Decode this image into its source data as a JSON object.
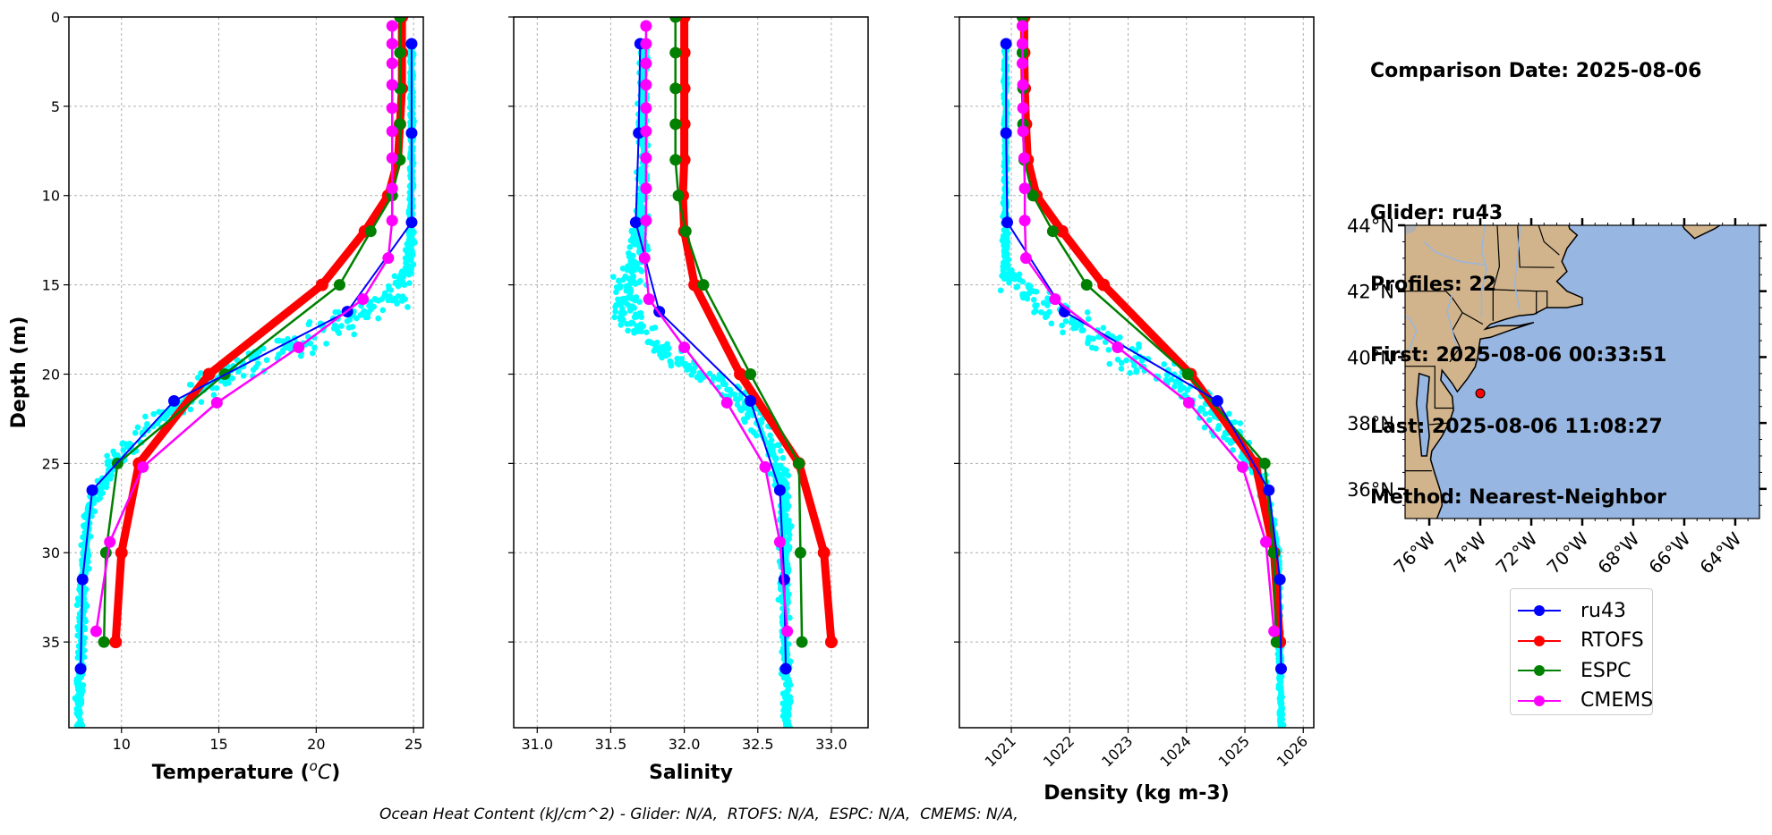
{
  "info": {
    "comparison_date": "Comparison Date: 2025-08-06",
    "glider": "Glider: ru43",
    "profiles": "Profiles: 22",
    "first": "First: 2025-08-06 00:33:51",
    "last": "Last: 2025-08-06 11:08:27",
    "method": "Method: Nearest-Neighbor"
  },
  "footer": {
    "ohc_text": "Ocean Heat Content (kJ/cm^2) - Glider: N/A,  RTOFS: N/A,  ESPC: N/A,  CMEMS: N/A,"
  },
  "legend": [
    {
      "name": "ru43",
      "color": "#0000ff"
    },
    {
      "name": "RTOFS",
      "color": "#ff0000"
    },
    {
      "name": "ESPC",
      "color": "#008000"
    },
    {
      "name": "CMEMS",
      "color": "#ff00ff"
    }
  ],
  "colors": {
    "scatter": "#00ffff",
    "land": "#d2b48c",
    "ocean": "#97b6e1",
    "lakes": "#b0b0b0",
    "rivers": "#97b6e1",
    "grid": "#b0b0b0"
  },
  "chart_data": [
    {
      "type": "line",
      "id": "temperature",
      "xlabel": "Temperature (°C)",
      "ylabel": "Depth (m)",
      "xlim": [
        7.3,
        25.5
      ],
      "ylim": [
        39.8,
        0
      ],
      "xticks": [
        10,
        15,
        20,
        25
      ],
      "yticks": [
        0,
        5,
        10,
        15,
        20,
        25,
        30,
        35
      ],
      "grid": true,
      "scatter": {
        "name": "glider raw profiles",
        "description": "cyan points: surface mixed layer ~24.5-25.2 C to ~18 m; thermocline cloud from ~23 C at 15 m to ~8.5 C at 27 m; bottom ~7.7-8.5 C to 40 m"
      },
      "series": [
        {
          "name": "ru43",
          "depth": [
            1.5,
            6.5,
            11.5,
            16.5,
            21.5,
            26.5,
            31.5,
            36.5
          ],
          "values": [
            24.9,
            24.9,
            24.9,
            21.6,
            12.7,
            8.5,
            8.0,
            7.9
          ]
        },
        {
          "name": "RTOFS",
          "depth": [
            0,
            2,
            4,
            6,
            8,
            10,
            12,
            15,
            20,
            25,
            30,
            35
          ],
          "values": [
            24.4,
            24.4,
            24.4,
            24.3,
            24.2,
            23.7,
            22.5,
            20.3,
            14.5,
            10.9,
            10.0,
            9.7
          ]
        },
        {
          "name": "ESPC",
          "depth": [
            0,
            2,
            4,
            6,
            8,
            10,
            12,
            15,
            20,
            25,
            30,
            35
          ],
          "values": [
            24.3,
            24.3,
            24.3,
            24.3,
            24.3,
            23.9,
            22.8,
            21.2,
            15.3,
            9.8,
            9.2,
            9.1
          ]
        },
        {
          "name": "CMEMS",
          "depth": [
            0.5,
            1.5,
            2.6,
            3.8,
            5.1,
            6.4,
            7.9,
            9.6,
            11.4,
            13.5,
            15.8,
            18.5,
            21.6,
            25.2,
            29.4,
            34.4
          ],
          "values": [
            23.9,
            23.9,
            23.9,
            23.9,
            23.9,
            23.9,
            23.9,
            23.9,
            23.9,
            23.7,
            22.4,
            19.1,
            14.9,
            11.1,
            9.4,
            8.7
          ]
        }
      ]
    },
    {
      "type": "line",
      "id": "salinity",
      "xlabel": "Salinity",
      "ylabel": "",
      "xlim": [
        30.84,
        33.25
      ],
      "ylim": [
        39.8,
        0
      ],
      "xticks": [
        31.0,
        31.5,
        32.0,
        32.5,
        33.0
      ],
      "yticks": [
        0,
        5,
        10,
        15,
        20,
        25,
        30,
        35
      ],
      "grid": true,
      "scatter": {
        "name": "glider raw profiles",
        "description": "cyan points: ~31.6-31.8 near surface to 13 m, spreading 31.2-31.8 at 14-20 m, ~32.3-32.8 below 20 m"
      },
      "series": [
        {
          "name": "ru43",
          "depth": [
            1.5,
            6.5,
            11.5,
            16.5,
            21.5,
            26.5,
            31.5,
            36.5
          ],
          "values": [
            31.7,
            31.69,
            31.67,
            31.83,
            32.45,
            32.65,
            32.68,
            32.69
          ]
        },
        {
          "name": "RTOFS",
          "depth": [
            0,
            2,
            4,
            6,
            8,
            10,
            12,
            15,
            20,
            25,
            30,
            35
          ],
          "values": [
            32.0,
            32.0,
            32.0,
            32.0,
            32.0,
            31.99,
            32.0,
            32.07,
            32.38,
            32.78,
            32.95,
            33.0
          ]
        },
        {
          "name": "ESPC",
          "depth": [
            0,
            2,
            4,
            6,
            8,
            10,
            12,
            15,
            20,
            25,
            30,
            35
          ],
          "values": [
            31.94,
            31.94,
            31.94,
            31.94,
            31.94,
            31.96,
            32.01,
            32.13,
            32.45,
            32.78,
            32.79,
            32.8
          ]
        },
        {
          "name": "CMEMS",
          "depth": [
            0.5,
            1.5,
            2.6,
            3.8,
            5.1,
            6.4,
            7.9,
            9.6,
            11.4,
            13.5,
            15.8,
            18.5,
            21.6,
            25.2,
            29.4,
            34.4
          ],
          "values": [
            31.74,
            31.74,
            31.74,
            31.74,
            31.74,
            31.74,
            31.74,
            31.74,
            31.74,
            31.73,
            31.76,
            32.0,
            32.29,
            32.55,
            32.65,
            32.7
          ]
        }
      ]
    },
    {
      "type": "line",
      "id": "density",
      "xlabel": "Density (kg m-3)",
      "ylabel": "",
      "xlim": [
        1020.11,
        1026.18
      ],
      "ylim": [
        39.8,
        0
      ],
      "xticks": [
        1021,
        1022,
        1023,
        1024,
        1025,
        1026
      ],
      "yticks": [
        0,
        5,
        10,
        15,
        20,
        25,
        30,
        35
      ],
      "grid": true,
      "scatter": {
        "name": "glider raw profiles",
        "description": "cyan points: ~1020.9 near surface to 20 m, pycnocline cloud from ~1022 at 16 m to ~1025.4 at 26 m, ~1025.6 below"
      },
      "series": [
        {
          "name": "ru43",
          "depth": [
            1.5,
            6.5,
            11.5,
            16.5,
            21.5,
            26.5,
            31.5,
            36.5
          ],
          "values": [
            1020.91,
            1020.91,
            1020.93,
            1021.91,
            1024.53,
            1025.41,
            1025.6,
            1025.62
          ]
        },
        {
          "name": "RTOFS",
          "depth": [
            0,
            2,
            4,
            6,
            8,
            10,
            12,
            15,
            20,
            25,
            30,
            35
          ],
          "values": [
            1021.22,
            1021.22,
            1021.23,
            1021.25,
            1021.28,
            1021.43,
            1021.87,
            1022.58,
            1024.07,
            1025.18,
            1025.5,
            1025.6
          ]
        },
        {
          "name": "ESPC",
          "depth": [
            0,
            2,
            4,
            6,
            8,
            10,
            12,
            15,
            20,
            25,
            30,
            35
          ],
          "values": [
            1021.19,
            1021.19,
            1021.2,
            1021.2,
            1021.22,
            1021.37,
            1021.71,
            1022.29,
            1024.02,
            1025.34,
            1025.49,
            1025.54
          ]
        },
        {
          "name": "CMEMS",
          "depth": [
            0.5,
            1.5,
            2.6,
            3.8,
            5.1,
            6.4,
            7.9,
            9.6,
            11.4,
            13.5,
            15.8,
            18.5,
            21.6,
            25.2,
            29.4,
            34.4
          ],
          "values": [
            1021.19,
            1021.19,
            1021.19,
            1021.2,
            1021.2,
            1021.2,
            1021.22,
            1021.23,
            1021.23,
            1021.25,
            1021.75,
            1022.82,
            1024.04,
            1024.96,
            1025.36,
            1025.5
          ]
        }
      ]
    },
    {
      "type": "map",
      "id": "location-map",
      "lon_range": [
        -76.95,
        -63.05
      ],
      "lat_range": [
        35.1,
        44.0
      ],
      "xticks": [
        "76°W",
        "74°W",
        "72°W",
        "70°W",
        "68°W",
        "66°W",
        "64°W"
      ],
      "xtick_values": [
        -76,
        -74,
        -72,
        -70,
        -68,
        -66,
        -64
      ],
      "yticks": [
        "36°N",
        "38°N",
        "40°N",
        "42°N",
        "44°N"
      ],
      "ytick_values": [
        36,
        38,
        40,
        42,
        44
      ],
      "glider_position": {
        "lon": -74.0,
        "lat": 38.9
      }
    }
  ]
}
